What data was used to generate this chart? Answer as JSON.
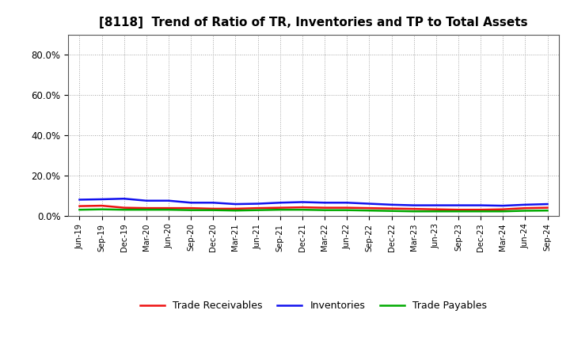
{
  "title": "[8118]  Trend of Ratio of TR, Inventories and TP to Total Assets",
  "xlabels": [
    "Jun-19",
    "Sep-19",
    "Dec-19",
    "Mar-20",
    "Jun-20",
    "Sep-20",
    "Dec-20",
    "Mar-21",
    "Jun-21",
    "Sep-21",
    "Dec-21",
    "Mar-22",
    "Jun-22",
    "Sep-22",
    "Dec-22",
    "Mar-23",
    "Jun-23",
    "Sep-23",
    "Dec-23",
    "Mar-24",
    "Jun-24",
    "Sep-24"
  ],
  "trade_receivables": [
    0.048,
    0.05,
    0.04,
    0.038,
    0.038,
    0.038,
    0.035,
    0.035,
    0.038,
    0.04,
    0.042,
    0.04,
    0.04,
    0.038,
    0.036,
    0.034,
    0.032,
    0.03,
    0.03,
    0.032,
    0.038,
    0.04
  ],
  "inventories": [
    0.08,
    0.082,
    0.085,
    0.075,
    0.075,
    0.065,
    0.065,
    0.058,
    0.06,
    0.065,
    0.068,
    0.065,
    0.065,
    0.06,
    0.055,
    0.052,
    0.052,
    0.052,
    0.052,
    0.05,
    0.055,
    0.058
  ],
  "trade_payables": [
    0.03,
    0.032,
    0.03,
    0.03,
    0.03,
    0.028,
    0.028,
    0.026,
    0.028,
    0.03,
    0.03,
    0.028,
    0.028,
    0.026,
    0.024,
    0.022,
    0.022,
    0.022,
    0.022,
    0.022,
    0.025,
    0.026
  ],
  "tr_color": "#ee1111",
  "inv_color": "#1111ee",
  "tp_color": "#00aa00",
  "bg_color": "#ffffff",
  "grid_color": "#999999",
  "ylim": [
    0.0,
    0.9
  ],
  "yticks": [
    0.0,
    0.2,
    0.4,
    0.6,
    0.8
  ],
  "yticklabels": [
    "0.0%",
    "20.0%",
    "40.0%",
    "60.0%",
    "80.0%"
  ],
  "legend_labels": [
    "Trade Receivables",
    "Inventories",
    "Trade Payables"
  ]
}
